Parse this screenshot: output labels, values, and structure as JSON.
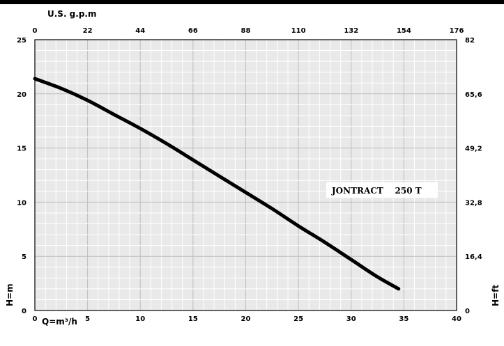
{
  "chart_data": {
    "type": "line",
    "annotation": "JONTRACT    250 T",
    "x_axis": {
      "label": "Q=m³/h",
      "range": [
        0,
        40
      ],
      "ticks": [
        "0",
        "5",
        "10",
        "15",
        "20",
        "25",
        "30",
        "35",
        "40"
      ]
    },
    "x2_axis": {
      "label": "U.S. g.p.m",
      "range": [
        0,
        176
      ],
      "ticks": [
        "0",
        "22",
        "44",
        "66",
        "88",
        "110",
        "132",
        "154",
        "176"
      ]
    },
    "y_axis": {
      "label": "H=m",
      "range": [
        0,
        25
      ],
      "ticks": [
        "0",
        "5",
        "10",
        "15",
        "20",
        "25"
      ]
    },
    "y2_axis": {
      "label": "H=ft",
      "range": [
        0,
        82
      ],
      "ticks": [
        "0",
        "16,4",
        "32,8",
        "49,2",
        "65,6",
        "82"
      ]
    },
    "grid": true,
    "colors": {
      "background": "#e9e9e9",
      "grid": "#ffffff",
      "curve": "#000000"
    },
    "series": [
      {
        "x": [
          0,
          2.5,
          5,
          7.5,
          10,
          12.5,
          15,
          17.5,
          20,
          22.5,
          25,
          27.5,
          30,
          32.5,
          34.5
        ],
        "y": [
          21.4,
          20.5,
          19.4,
          18.1,
          16.8,
          15.4,
          13.9,
          12.4,
          10.9,
          9.4,
          7.8,
          6.3,
          4.7,
          3.1,
          2.0
        ]
      }
    ]
  }
}
